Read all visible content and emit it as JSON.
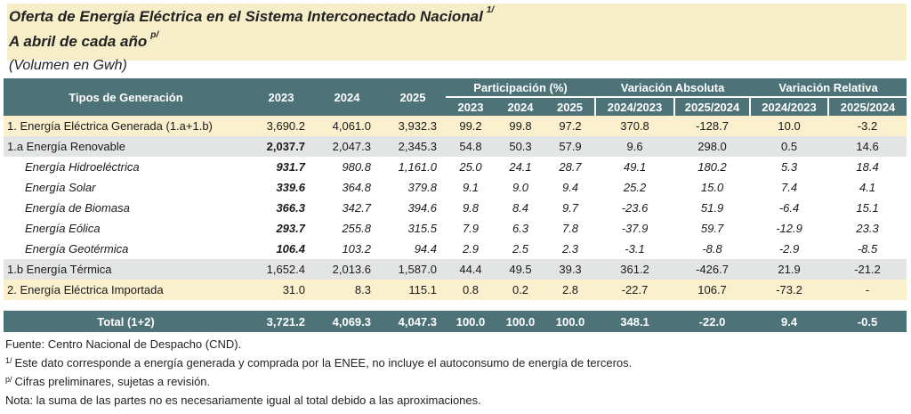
{
  "title": {
    "line1": "Oferta de Energía Eléctrica  en el Sistema Interconectado Nacional",
    "line1_sup": "1/",
    "line2": "A abril de cada año",
    "line2_sup": "p/",
    "line3": "(Volumen en Gwh)"
  },
  "header": {
    "tipos": "Tipos de Generación",
    "y2023": "2023",
    "y2024": "2024",
    "y2025": "2025",
    "participacion": "Participación (%)",
    "var_abs": "Variación Absoluta",
    "var_rel": "Variación Relativa",
    "p2023": "2023",
    "p2024": "2024",
    "p2025": "2025",
    "va1": "2024/2023",
    "va2": "2025/2024",
    "vr1": "2024/2023",
    "vr2": "2025/2024"
  },
  "rows": [
    {
      "label": "1.  Energía Eléctrica Generada (1.a+1.b)",
      "v2023": "3,690.2",
      "v2024": "4,061.0",
      "v2025": "3,932.3",
      "p2023": "99.2",
      "p2024": "99.8",
      "p2025": "97.2",
      "va1": "370.8",
      "va2": "-128.7",
      "vr1": "10.0",
      "vr2": "-3.2"
    },
    {
      "label": "1.a Energía Renovable",
      "v2023": "2,037.7",
      "v2024": "2,047.3",
      "v2025": "2,345.3",
      "p2023": "54.8",
      "p2024": "50.3",
      "p2025": "57.9",
      "va1": "9.6",
      "va2": "298.0",
      "vr1": "0.5",
      "vr2": "14.6"
    },
    {
      "label": "Energía Hidroeléctrica",
      "v2023": "931.7",
      "v2024": "980.8",
      "v2025": "1,161.0",
      "p2023": "25.0",
      "p2024": "24.1",
      "p2025": "28.7",
      "va1": "49.1",
      "va2": "180.2",
      "vr1": "5.3",
      "vr2": "18.4"
    },
    {
      "label": "Energía Solar",
      "v2023": "339.6",
      "v2024": "364.8",
      "v2025": "379.8",
      "p2023": "9.1",
      "p2024": "9.0",
      "p2025": "9.4",
      "va1": "25.2",
      "va2": "15.0",
      "vr1": "7.4",
      "vr2": "4.1"
    },
    {
      "label": "Energía de Biomasa",
      "v2023": "366.3",
      "v2024": "342.7",
      "v2025": "394.6",
      "p2023": "9.8",
      "p2024": "8.4",
      "p2025": "9.7",
      "va1": "-23.6",
      "va2": "51.9",
      "vr1": "-6.4",
      "vr2": "15.1"
    },
    {
      "label": "Energía Eólica",
      "v2023": "293.7",
      "v2024": "255.8",
      "v2025": "315.5",
      "p2023": "7.9",
      "p2024": "6.3",
      "p2025": "7.8",
      "va1": "-37.9",
      "va2": "59.7",
      "vr1": "-12.9",
      "vr2": "23.3"
    },
    {
      "label": "Energía Geotérmica",
      "v2023": "106.4",
      "v2024": "103.2",
      "v2025": "94.4",
      "p2023": "2.9",
      "p2024": "2.5",
      "p2025": "2.3",
      "va1": "-3.1",
      "va2": "-8.8",
      "vr1": "-2.9",
      "vr2": "-8.5"
    },
    {
      "label": "1.b Energía Térmica",
      "v2023": "1,652.4",
      "v2024": "2,013.6",
      "v2025": "1,587.0",
      "p2023": "44.4",
      "p2024": "49.5",
      "p2025": "39.3",
      "va1": "361.2",
      "va2": "-426.7",
      "vr1": "21.9",
      "vr2": "-21.2"
    },
    {
      "label": "2. Energía Eléctrica Importada",
      "v2023": "31.0",
      "v2024": "8.3",
      "v2025": "115.1",
      "p2023": "0.8",
      "p2024": "0.2",
      "p2025": "2.8",
      "va1": "-22.7",
      "va2": "106.7",
      "vr1": "-73.2",
      "vr2": "-"
    }
  ],
  "total": {
    "label": "Total (1+2)",
    "v2023": "3,721.2",
    "v2024": "4,069.3",
    "v2025": "4,047.3",
    "p2023": "100.0",
    "p2024": "100.0",
    "p2025": "100.0",
    "va1": "348.1",
    "va2": "-22.0",
    "vr1": "9.4",
    "vr2": "-0.5"
  },
  "notes": {
    "fuente": "Fuente: Centro Nacional de Despacho (CND).",
    "n1_sup": "1/",
    "n1": "Este dato corresponde a energía generada y comprada por la ENEE, no incluye el autoconsumo de energía de terceros.",
    "n2_sup": "p/",
    "n2": "Cifras preliminares, sujetas a revisión.",
    "nota": "Nota: la suma de las partes no es necesariamente igual al total debido a las aproximaciones."
  },
  "colors": {
    "header": "#4d7378",
    "highlight": "#fbf0cd",
    "shaded": "#e3e5e5",
    "title_band": "#f6edc9"
  }
}
